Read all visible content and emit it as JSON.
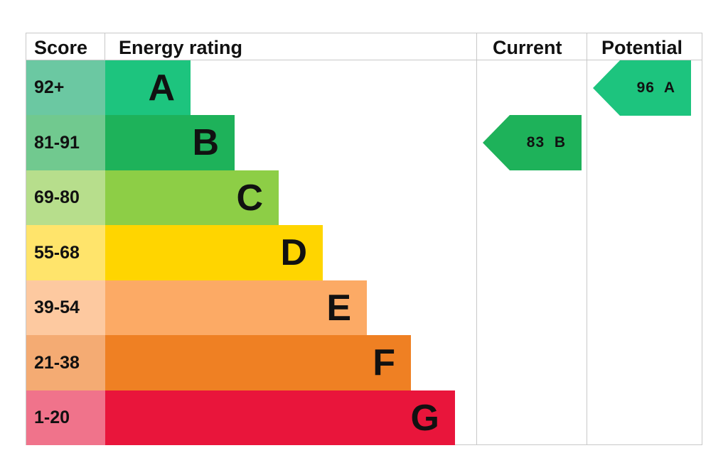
{
  "header": {
    "score": "Score",
    "energy_rating": "Energy rating",
    "current": "Current",
    "potential": "Potential"
  },
  "bands": [
    {
      "letter": "A",
      "range": "92+",
      "bar_color": "#1dc47e",
      "score_color": "#6bc8a2"
    },
    {
      "letter": "B",
      "range": "81-91",
      "bar_color": "#1eb25a",
      "score_color": "#71c98f"
    },
    {
      "letter": "C",
      "range": "69-80",
      "bar_color": "#8dce46",
      "score_color": "#b7de8c"
    },
    {
      "letter": "D",
      "range": "55-68",
      "bar_color": "#ffd500",
      "score_color": "#ffe46b"
    },
    {
      "letter": "E",
      "range": "39-54",
      "bar_color": "#fcaa65",
      "score_color": "#fdc9a0"
    },
    {
      "letter": "F",
      "range": "21-38",
      "bar_color": "#ef8023",
      "score_color": "#f4ab73"
    },
    {
      "letter": "G",
      "range": "1-20",
      "bar_color": "#e9153b",
      "score_color": "#f0738b"
    }
  ],
  "current": {
    "value": 83,
    "band": "B",
    "label": "83  B",
    "color": "#1eb25a"
  },
  "potential": {
    "value": 96,
    "band": "A",
    "label": "96  A",
    "color": "#1dc47e"
  },
  "chart_data": {
    "type": "bar",
    "title": "Energy rating",
    "categories": [
      "A",
      "B",
      "C",
      "D",
      "E",
      "F",
      "G"
    ],
    "score_ranges": [
      "92+",
      "81-91",
      "69-80",
      "55-68",
      "39-54",
      "21-38",
      "1-20"
    ],
    "bar_lengths_relative": [
      1,
      2,
      3,
      4,
      5,
      6,
      7
    ],
    "series": [
      {
        "name": "Current",
        "value": 83,
        "band": "B"
      },
      {
        "name": "Potential",
        "value": 96,
        "band": "A"
      }
    ],
    "columns": [
      "Score",
      "Energy rating",
      "Current",
      "Potential"
    ]
  }
}
